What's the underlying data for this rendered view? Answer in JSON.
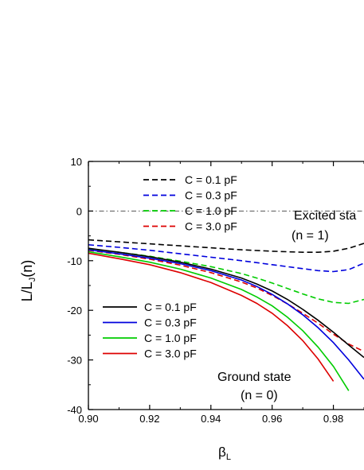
{
  "chart_data": {
    "type": "line",
    "xlabel": "β",
    "xlabel_sub": "L",
    "ylabel": "L/L",
    "ylabel_sub": "J",
    "ylabel_suffix": "(n)",
    "xlim": [
      0.9,
      0.99
    ],
    "ylim": [
      -40,
      10
    ],
    "xticks": [
      "0.90",
      "0.92",
      "0.94",
      "0.96",
      "0.98"
    ],
    "yticks": [
      "10",
      "0",
      "-10",
      "-20",
      "-30",
      "-40"
    ],
    "reference_line": {
      "y": 0,
      "style": "dash-dot",
      "color": "#555555"
    },
    "series": [
      {
        "name": "C = 0.1 pF",
        "group": "excited",
        "style": "dashed",
        "color": "#000000",
        "x": [
          0.9,
          0.91,
          0.92,
          0.93,
          0.94,
          0.95,
          0.96,
          0.97,
          0.975,
          0.98,
          0.985,
          0.99
        ],
        "y": [
          -5.8,
          -6.2,
          -6.6,
          -7.0,
          -7.4,
          -7.8,
          -8.1,
          -8.3,
          -8.3,
          -8.1,
          -7.5,
          -6.5
        ]
      },
      {
        "name": "C = 0.3 pF",
        "group": "excited",
        "style": "dashed",
        "color": "#0000dd",
        "x": [
          0.9,
          0.91,
          0.92,
          0.93,
          0.94,
          0.95,
          0.96,
          0.97,
          0.975,
          0.98,
          0.985,
          0.99
        ],
        "y": [
          -6.8,
          -7.3,
          -7.9,
          -8.6,
          -9.3,
          -10.0,
          -10.8,
          -11.6,
          -12.0,
          -12.2,
          -11.8,
          -10.5
        ]
      },
      {
        "name": "C = 1.0 pF",
        "group": "excited",
        "style": "dashed",
        "color": "#00cc00",
        "x": [
          0.9,
          0.91,
          0.92,
          0.93,
          0.94,
          0.95,
          0.955,
          0.96,
          0.965,
          0.97,
          0.975,
          0.98,
          0.985,
          0.99
        ],
        "y": [
          -7.6,
          -8.3,
          -9.1,
          -10.1,
          -11.2,
          -12.6,
          -13.5,
          -14.5,
          -15.6,
          -16.7,
          -17.7,
          -18.4,
          -18.6,
          -17.8
        ]
      },
      {
        "name": "C = 3.0 pF",
        "group": "excited",
        "style": "dashed",
        "color": "#dd0000",
        "x": [
          0.9,
          0.91,
          0.92,
          0.93,
          0.94,
          0.95,
          0.955,
          0.96,
          0.965,
          0.97,
          0.975,
          0.98,
          0.985,
          0.99
        ],
        "y": [
          -7.9,
          -8.7,
          -9.7,
          -10.9,
          -12.4,
          -14.3,
          -15.5,
          -17.0,
          -18.7,
          -20.6,
          -22.6,
          -24.8,
          -26.8,
          -28.3
        ]
      },
      {
        "name": "C = 0.1 pF",
        "group": "ground",
        "style": "solid",
        "color": "#000000",
        "x": [
          0.9,
          0.91,
          0.92,
          0.93,
          0.94,
          0.95,
          0.955,
          0.96,
          0.965,
          0.97,
          0.975,
          0.98,
          0.985,
          0.99
        ],
        "y": [
          -7.5,
          -8.3,
          -9.2,
          -10.3,
          -11.7,
          -13.5,
          -14.7,
          -16.1,
          -17.8,
          -19.8,
          -22.0,
          -24.4,
          -27.0,
          -29.5
        ]
      },
      {
        "name": "C = 0.3 pF",
        "group": "ground",
        "style": "solid",
        "color": "#0000dd",
        "x": [
          0.9,
          0.91,
          0.92,
          0.93,
          0.94,
          0.95,
          0.955,
          0.96,
          0.965,
          0.97,
          0.975,
          0.98,
          0.985,
          0.99
        ],
        "y": [
          -7.8,
          -8.6,
          -9.5,
          -10.6,
          -12.0,
          -13.9,
          -15.2,
          -16.8,
          -18.7,
          -20.9,
          -23.5,
          -26.5,
          -30.0,
          -33.9
        ]
      },
      {
        "name": "C = 1.0 pF",
        "group": "ground",
        "style": "solid",
        "color": "#00cc00",
        "x": [
          0.9,
          0.91,
          0.92,
          0.93,
          0.94,
          0.95,
          0.955,
          0.96,
          0.965,
          0.97,
          0.975,
          0.98,
          0.985
        ],
        "y": [
          -8.2,
          -9.2,
          -10.3,
          -11.7,
          -13.5,
          -15.8,
          -17.3,
          -19.1,
          -21.4,
          -24.1,
          -27.4,
          -31.3,
          -36.2
        ]
      },
      {
        "name": "C = 3.0 pF",
        "group": "ground",
        "style": "solid",
        "color": "#dd0000",
        "x": [
          0.9,
          0.91,
          0.92,
          0.93,
          0.94,
          0.95,
          0.955,
          0.96,
          0.965,
          0.97,
          0.975,
          0.98
        ],
        "y": [
          -8.5,
          -9.6,
          -10.8,
          -12.4,
          -14.4,
          -17.0,
          -18.6,
          -20.6,
          -23.1,
          -26.1,
          -29.8,
          -34.3
        ]
      }
    ],
    "legend_excited": [
      "C = 0.1 pF",
      "C = 0.3 pF",
      "C = 1.0 pF",
      "C = 3.0 pF"
    ],
    "legend_ground": [
      "C = 0.1 pF",
      "C = 0.3 pF",
      "C = 1.0 pF",
      "C = 3.0 pF"
    ],
    "annotations": {
      "excited_line1": "Excited sta",
      "excited_line2": "(n = 1)",
      "ground_line1": "Ground state",
      "ground_line2": "(n = 0)"
    }
  }
}
